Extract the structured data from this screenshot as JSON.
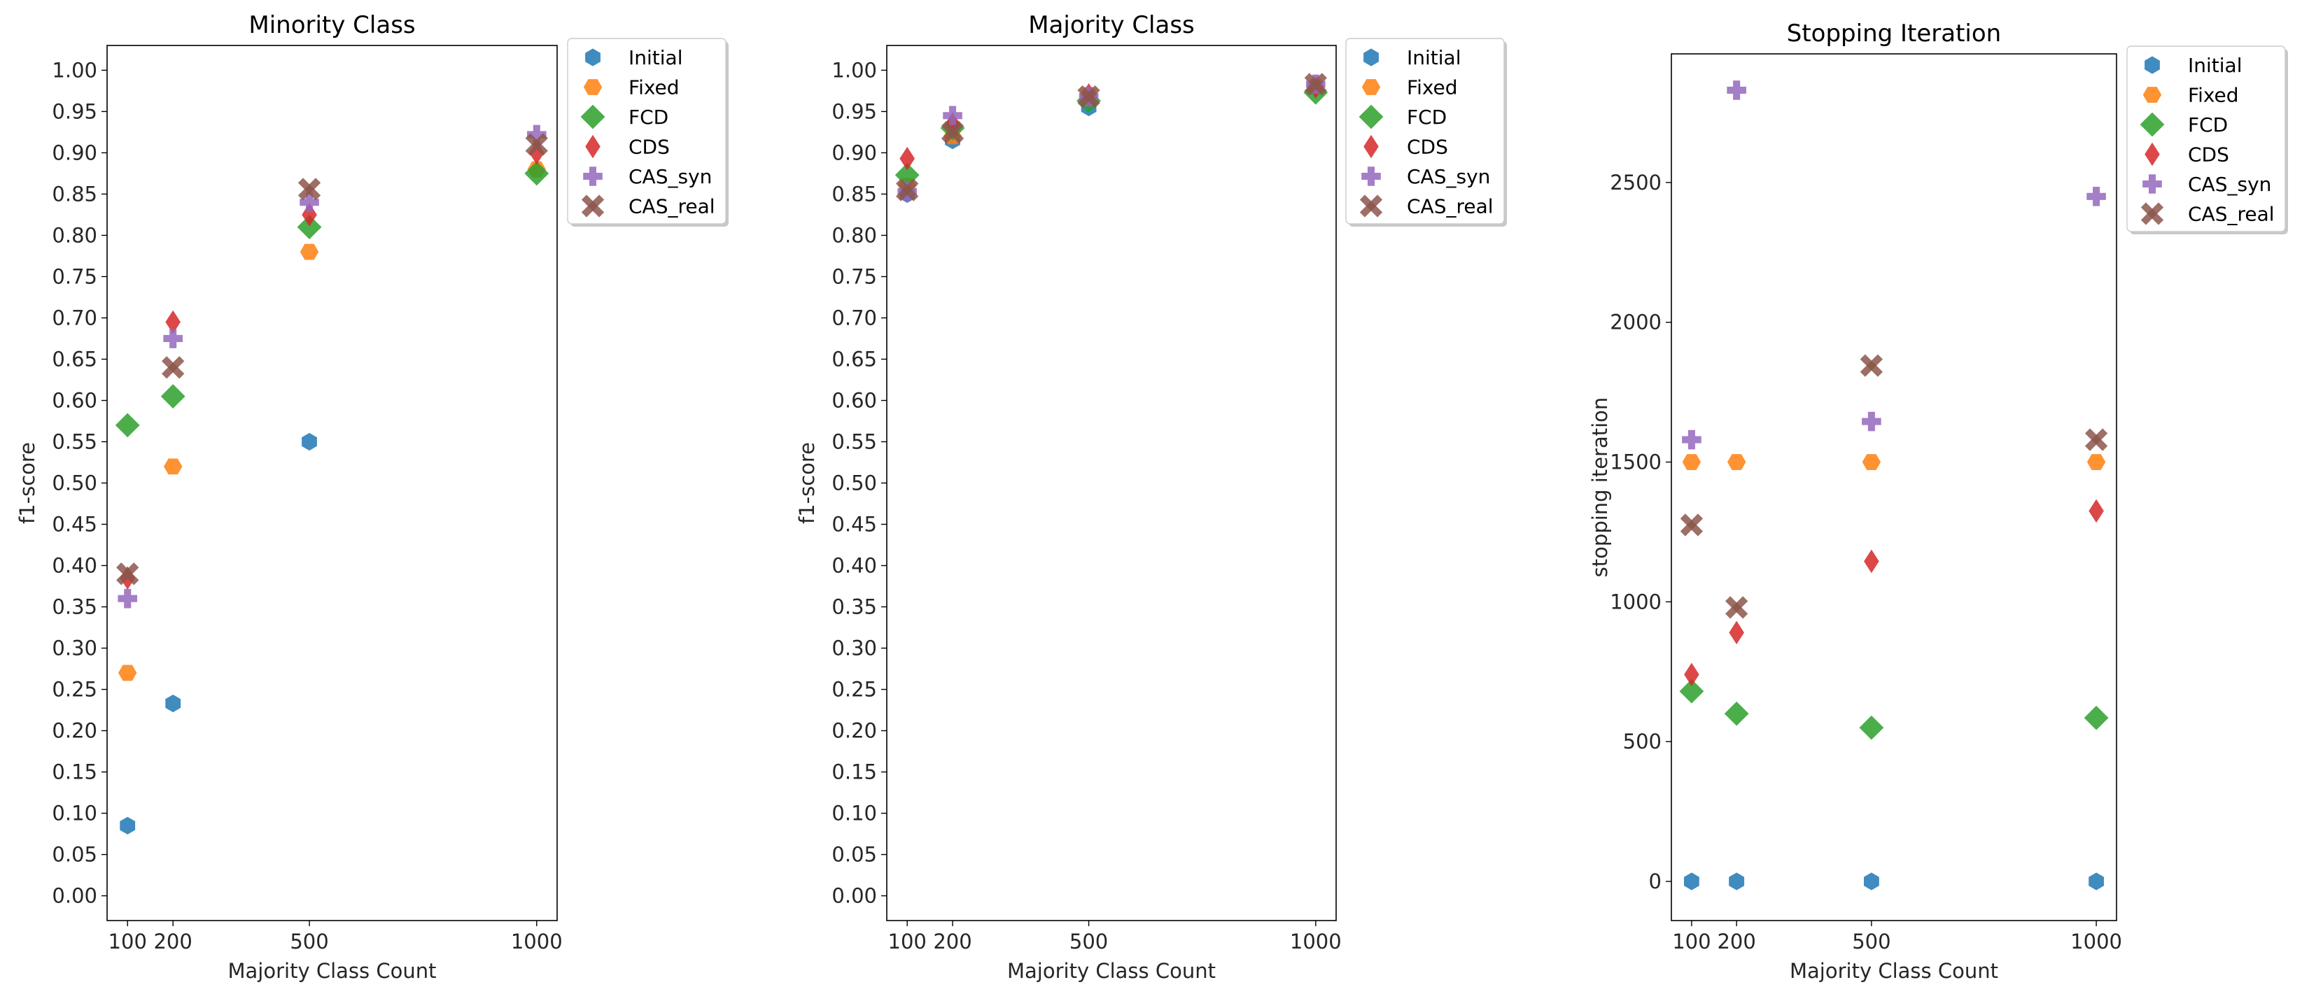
{
  "colors": {
    "Initial": "#1f77b4",
    "Fixed": "#ff7f0e",
    "FCD": "#2ca02c",
    "CDS": "#d62728",
    "CAS_syn": "#9467bd",
    "CAS_real": "#8c564b"
  },
  "chart_data": [
    {
      "type": "scatter",
      "title": "Minority Class",
      "xlabel": "Majority Class Count",
      "ylabel": "f1-score",
      "x": [
        100,
        200,
        500,
        1000
      ],
      "xticks": [
        "100",
        "200",
        "500",
        "1000"
      ],
      "xlim": [
        55,
        1045
      ],
      "ylim": [
        -0.03,
        1.03
      ],
      "yticks": [
        "0.00",
        "0.05",
        "0.10",
        "0.15",
        "0.20",
        "0.25",
        "0.30",
        "0.35",
        "0.40",
        "0.45",
        "0.50",
        "0.55",
        "0.60",
        "0.65",
        "0.70",
        "0.75",
        "0.80",
        "0.85",
        "0.90",
        "0.95",
        "1.00"
      ],
      "legend_position": "outside-top-right",
      "series": [
        {
          "name": "Initial",
          "marker": "hexagon",
          "values": [
            0.085,
            0.233,
            0.55,
            null
          ]
        },
        {
          "name": "Fixed",
          "marker": "hexagon2",
          "values": [
            0.27,
            0.52,
            0.78,
            0.88
          ]
        },
        {
          "name": "FCD",
          "marker": "diamond",
          "values": [
            0.57,
            0.605,
            0.81,
            0.875
          ]
        },
        {
          "name": "CDS",
          "marker": "thin-diamond",
          "values": [
            0.385,
            0.695,
            0.825,
            0.9
          ]
        },
        {
          "name": "CAS_syn",
          "marker": "plus",
          "values": [
            0.36,
            0.675,
            0.84,
            0.922
          ]
        },
        {
          "name": "CAS_real",
          "marker": "x",
          "values": [
            0.39,
            0.64,
            0.856,
            0.91
          ]
        }
      ]
    },
    {
      "type": "scatter",
      "title": "Majority Class",
      "xlabel": "Majority Class Count",
      "ylabel": "f1-score",
      "x": [
        100,
        200,
        500,
        1000
      ],
      "xticks": [
        "100",
        "200",
        "500",
        "1000"
      ],
      "xlim": [
        55,
        1045
      ],
      "ylim": [
        -0.03,
        1.03
      ],
      "yticks": [
        "0.00",
        "0.05",
        "0.10",
        "0.15",
        "0.20",
        "0.25",
        "0.30",
        "0.35",
        "0.40",
        "0.45",
        "0.50",
        "0.55",
        "0.60",
        "0.65",
        "0.70",
        "0.75",
        "0.80",
        "0.85",
        "0.90",
        "0.95",
        "1.00"
      ],
      "legend_position": "outside-top-right",
      "series": [
        {
          "name": "Initial",
          "marker": "hexagon",
          "values": [
            0.85,
            0.915,
            0.955,
            0.98
          ]
        },
        {
          "name": "Fixed",
          "marker": "hexagon2",
          "values": [
            0.86,
            0.92,
            0.97,
            0.98
          ]
        },
        {
          "name": "FCD",
          "marker": "diamond",
          "values": [
            0.873,
            0.93,
            0.963,
            0.973
          ]
        },
        {
          "name": "CDS",
          "marker": "thin-diamond",
          "values": [
            0.893,
            0.935,
            0.97,
            0.98
          ]
        },
        {
          "name": "CAS_syn",
          "marker": "plus",
          "values": [
            0.853,
            0.945,
            0.968,
            0.983
          ]
        },
        {
          "name": "CAS_real",
          "marker": "x",
          "values": [
            0.855,
            0.925,
            0.968,
            0.983
          ]
        }
      ]
    },
    {
      "type": "scatter",
      "title": "Stopping Iteration",
      "xlabel": "Majority Class Count",
      "ylabel": "stopping iteration",
      "x": [
        100,
        200,
        500,
        1000
      ],
      "xticks": [
        "100",
        "200",
        "500",
        "1000"
      ],
      "xlim": [
        55,
        1045
      ],
      "ylim": [
        -140,
        2960
      ],
      "yticks": [
        "0",
        "500",
        "1000",
        "1500",
        "2000",
        "2500"
      ],
      "legend_position": "outside-top-right",
      "series": [
        {
          "name": "Initial",
          "marker": "hexagon",
          "values": [
            0,
            0,
            0,
            0
          ]
        },
        {
          "name": "Fixed",
          "marker": "hexagon2",
          "values": [
            1500,
            1500,
            1500,
            1500
          ]
        },
        {
          "name": "FCD",
          "marker": "diamond",
          "values": [
            680,
            600,
            550,
            585
          ]
        },
        {
          "name": "CDS",
          "marker": "thin-diamond",
          "values": [
            740,
            890,
            1145,
            1325
          ]
        },
        {
          "name": "CAS_syn",
          "marker": "plus",
          "values": [
            1580,
            2830,
            1645,
            2450
          ]
        },
        {
          "name": "CAS_real",
          "marker": "x",
          "values": [
            1275,
            980,
            1845,
            1580
          ]
        }
      ]
    }
  ]
}
